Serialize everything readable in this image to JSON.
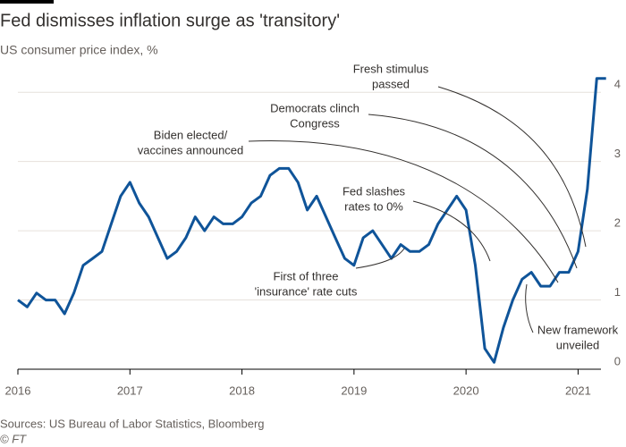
{
  "chart_data": {
    "type": "line",
    "title": "Fed dismisses inflation surge as 'transitory'",
    "subtitle": "US consumer price index, %",
    "source": "Sources: US Bureau of Labor Statistics, Bloomberg",
    "credit": "© FT",
    "color": "#0f5499",
    "grid": true,
    "xlim": [
      2016,
      2021.3
    ],
    "xticks": [
      2016,
      2017,
      2018,
      2019,
      2020,
      2021
    ],
    "ylim": [
      0,
      4.3
    ],
    "yticks": [
      0,
      1,
      2,
      3,
      4
    ],
    "x": [
      2016,
      2016.083,
      2016.167,
      2016.25,
      2016.333,
      2016.417,
      2016.5,
      2016.583,
      2016.667,
      2016.75,
      2016.833,
      2016.917,
      2017,
      2017.083,
      2017.167,
      2017.25,
      2017.333,
      2017.417,
      2017.5,
      2017.583,
      2017.667,
      2017.75,
      2017.833,
      2017.917,
      2018,
      2018.083,
      2018.167,
      2018.25,
      2018.333,
      2018.417,
      2018.5,
      2018.583,
      2018.667,
      2018.75,
      2018.833,
      2018.917,
      2019,
      2019.083,
      2019.167,
      2019.25,
      2019.333,
      2019.417,
      2019.5,
      2019.583,
      2019.667,
      2019.75,
      2019.833,
      2019.917,
      2020,
      2020.083,
      2020.167,
      2020.25,
      2020.333,
      2020.417,
      2020.5,
      2020.583,
      2020.667,
      2020.75,
      2020.833,
      2020.917,
      2021,
      2021.083,
      2021.167,
      2021.25
    ],
    "values": [
      1.0,
      0.9,
      1.1,
      1.0,
      1.0,
      0.8,
      1.1,
      1.5,
      1.6,
      1.7,
      2.1,
      2.5,
      2.7,
      2.4,
      2.2,
      1.9,
      1.6,
      1.7,
      1.9,
      2.2,
      2.0,
      2.2,
      2.1,
      2.1,
      2.2,
      2.4,
      2.5,
      2.8,
      2.9,
      2.9,
      2.7,
      2.3,
      2.5,
      2.2,
      1.9,
      1.6,
      1.5,
      1.9,
      2.0,
      1.8,
      1.6,
      1.8,
      1.7,
      1.7,
      1.8,
      2.1,
      2.3,
      2.5,
      2.3,
      1.5,
      0.3,
      0.1,
      0.6,
      1.0,
      1.3,
      1.4,
      1.2,
      1.2,
      1.4,
      1.4,
      1.7,
      2.6,
      4.2,
      4.2
    ],
    "annotations": [
      [
        "Fresh stimulus",
        "passed"
      ],
      [
        "Democrats clinch",
        "Congress"
      ],
      [
        "Biden elected/",
        "vaccines announced"
      ],
      [
        "Fed slashes",
        "rates to 0%"
      ],
      [
        "First of three",
        "'insurance' rate cuts"
      ],
      [
        "New framework",
        "unveiled"
      ]
    ]
  }
}
